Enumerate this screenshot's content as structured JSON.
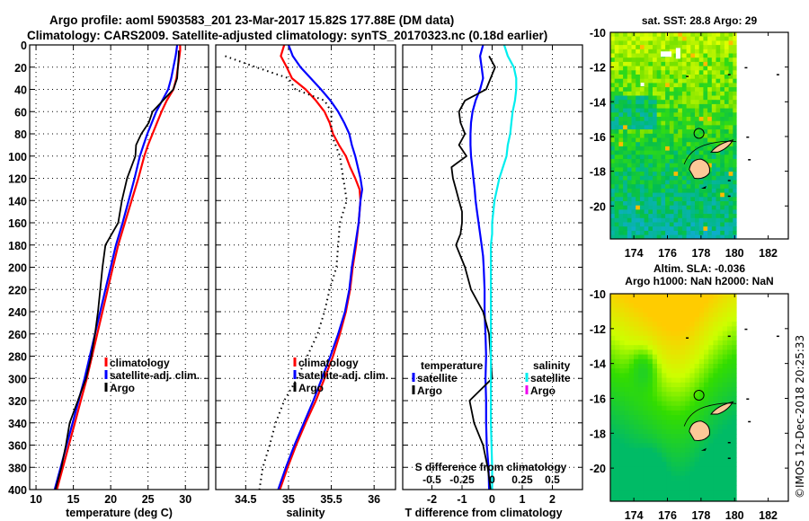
{
  "title": {
    "line1": "Argo profile: aoml 5903583_201 23-Mar-2017 15.82S 177.88E (DM data)",
    "line2": "Climatology: CARS2009. Satellite-adjusted climatology: synTS_20170323.nc (0.18d earlier)"
  },
  "credit": "©IMOS 12-Dec-2018 20:25:33",
  "colors": {
    "climatology": "#ff0000",
    "satellite": "#0000ff",
    "argo": "#000000",
    "salinity_satellite": "#00eeee",
    "salinity_argo": "#ee00ee",
    "land": "#fcc898"
  },
  "chart_data": [
    {
      "type": "line",
      "id": "temperature",
      "xlabel": "temperature (deg C)",
      "ylabel": "",
      "xlim": [
        9.15,
        33.1
      ],
      "ylim": [
        400,
        0
      ],
      "xticks": [
        10,
        15,
        20,
        25,
        30
      ],
      "yticks": [
        0,
        20,
        40,
        60,
        80,
        100,
        120,
        140,
        160,
        180,
        200,
        220,
        240,
        260,
        280,
        300,
        320,
        340,
        360,
        380,
        400
      ],
      "grid": true,
      "legend": {
        "position": "center-right",
        "labels": [
          "climatology",
          "satellite-adj. clim.",
          "Argo"
        ]
      },
      "depth": [
        0,
        5,
        10,
        20,
        30,
        40,
        50,
        60,
        70,
        80,
        90,
        100,
        120,
        140,
        160,
        180,
        200,
        220,
        240,
        260,
        280,
        300,
        320,
        340,
        360,
        380,
        400
      ],
      "series": [
        {
          "name": "climatology",
          "color_key": "climatology",
          "values": [
            29.3,
            29.3,
            29.2,
            29.0,
            28.8,
            28.4,
            27.5,
            26.8,
            26.2,
            25.6,
            25.0,
            24.5,
            23.7,
            22.8,
            21.9,
            21.0,
            20.3,
            19.6,
            18.9,
            18.2,
            17.5,
            16.8,
            16.0,
            15.2,
            14.4,
            13.6,
            12.8
          ]
        },
        {
          "name": "satellite-adj. clim.",
          "color_key": "satellite",
          "values": [
            28.9,
            28.8,
            28.7,
            28.4,
            28.1,
            27.7,
            26.9,
            26.1,
            25.5,
            24.9,
            24.4,
            23.9,
            23.2,
            22.4,
            21.6,
            20.7,
            20.0,
            19.3,
            18.6,
            17.9,
            17.2,
            16.5,
            15.7,
            14.9,
            14.1,
            13.3,
            12.5
          ]
        },
        {
          "name": "Argo",
          "color_key": "argo",
          "values": [
            null,
            29.1,
            29.1,
            29.0,
            28.9,
            28.4,
            27.0,
            25.6,
            25.1,
            24.1,
            23.4,
            23.3,
            22.2,
            21.5,
            21.0,
            19.3,
            18.9,
            18.6,
            18.3,
            17.9,
            17.4,
            16.7,
            15.6,
            14.5,
            14.0,
            13.4,
            12.6
          ]
        }
      ]
    },
    {
      "type": "line",
      "id": "salinity",
      "xlabel": "salinity",
      "xlim": [
        34.15,
        36.25
      ],
      "ylim": [
        400,
        0
      ],
      "xticks": [
        34.5,
        35,
        35.5,
        36
      ],
      "grid": true,
      "legend": {
        "position": "center-right",
        "labels": [
          "climatology",
          "satellite-adj. clim.",
          "Argo"
        ]
      },
      "depth": [
        0,
        10,
        20,
        30,
        40,
        50,
        60,
        70,
        80,
        90,
        100,
        110,
        120,
        130,
        140,
        160,
        180,
        200,
        220,
        240,
        260,
        280,
        300,
        320,
        340,
        360,
        380,
        400
      ],
      "series": [
        {
          "name": "climatology",
          "color_key": "climatology",
          "values": [
            34.95,
            34.91,
            34.98,
            35.04,
            35.2,
            35.32,
            35.42,
            35.48,
            35.52,
            35.59,
            35.67,
            35.72,
            35.78,
            35.83,
            35.84,
            35.82,
            35.79,
            35.75,
            35.72,
            35.67,
            35.6,
            35.52,
            35.42,
            35.32,
            35.2,
            35.09,
            34.99,
            34.9
          ]
        },
        {
          "name": "satellite-adj. clim.",
          "color_key": "satellite",
          "values": [
            35.0,
            35.05,
            35.14,
            35.26,
            35.38,
            35.49,
            35.58,
            35.65,
            35.71,
            35.74,
            35.78,
            35.81,
            35.84,
            35.86,
            35.84,
            35.82,
            35.78,
            35.74,
            35.71,
            35.66,
            35.58,
            35.49,
            35.39,
            35.29,
            35.18,
            35.07,
            34.97,
            34.88
          ]
        },
        {
          "name": "Argo",
          "color_key": "argo",
          "dotted": true,
          "values": [
            null,
            34.26,
            34.62,
            35.0,
            35.08,
            35.42,
            35.5,
            35.5,
            35.5,
            35.55,
            35.6,
            35.62,
            35.64,
            35.66,
            35.68,
            35.6,
            35.58,
            35.56,
            35.48,
            35.42,
            35.34,
            35.22,
            35.1,
            34.95,
            34.85,
            34.78,
            34.7,
            34.66
          ]
        }
      ]
    },
    {
      "type": "line",
      "id": "difference",
      "xlabel": "T difference from climatology",
      "x2label": "S difference from climatology",
      "xlim": [
        -2.97,
        3.0
      ],
      "x2lim": [
        -0.742,
        0.75
      ],
      "ylim": [
        400,
        0
      ],
      "xticks": [
        -2,
        -1,
        0,
        1,
        2
      ],
      "x2ticks": [
        -0.5,
        -0.25,
        0,
        0.25,
        0.5
      ],
      "x2ticklabels": [
        "-0.5",
        "-0.25",
        "0",
        "0.25",
        "0.5"
      ],
      "grid": true,
      "legend": {
        "position": "center",
        "temperature_header": "temperature",
        "salinity_header": "salinity",
        "labels": [
          "satellite",
          "Argo",
          "satellite",
          "Argo"
        ]
      },
      "depth": [
        0,
        10,
        20,
        30,
        40,
        50,
        60,
        70,
        80,
        90,
        100,
        110,
        120,
        130,
        140,
        150,
        160,
        170,
        180,
        190,
        200,
        220,
        240,
        260,
        280,
        300,
        320,
        340,
        360,
        380,
        400
      ],
      "series": [
        {
          "name": "temperature satellite",
          "color_key": "satellite",
          "axis": "T",
          "values": [
            -0.3,
            -0.4,
            -0.35,
            -0.3,
            -0.4,
            -0.55,
            -0.65,
            -0.7,
            -0.72,
            -0.72,
            -0.7,
            -0.66,
            -0.62,
            -0.58,
            -0.55,
            -0.5,
            -0.45,
            -0.4,
            -0.35,
            -0.3,
            -0.28,
            -0.25,
            -0.25,
            -0.22,
            -0.2,
            -0.22,
            -0.2,
            -0.2,
            -0.18,
            -0.12,
            -0.1
          ]
        },
        {
          "name": "temperature Argo",
          "color_key": "argo",
          "axis": "T",
          "values": [
            null,
            -0.1,
            0.1,
            -0.05,
            -0.2,
            -0.9,
            -1.1,
            -1.05,
            -0.9,
            -1.1,
            -0.85,
            -1.35,
            -1.3,
            -1.2,
            -1.1,
            -1.0,
            -1.0,
            -1.05,
            -1.2,
            -1.05,
            -0.9,
            -0.7,
            -0.3,
            -0.1,
            -0.05,
            0.0,
            -0.75,
            -0.6,
            -0.3,
            -0.15,
            -0.05
          ]
        },
        {
          "name": "salinity satellite",
          "color_key": "salinity_satellite",
          "axis": "S",
          "values": [
            0.1,
            0.13,
            0.18,
            0.2,
            0.2,
            0.19,
            0.17,
            0.16,
            0.15,
            0.13,
            0.12,
            0.09,
            0.06,
            0.04,
            0.02,
            0.01,
            0.0,
            0.0,
            -0.01,
            -0.01,
            -0.01,
            -0.01,
            -0.01,
            -0.01,
            -0.01,
            -0.01,
            -0.01,
            -0.01,
            -0.005,
            0.0,
            0.0
          ]
        }
      ]
    },
    {
      "type": "heatmap",
      "id": "sst-map",
      "title": "sat. SST: 28.8 Argo: 29",
      "xlim": [
        172.6,
        183.2
      ],
      "ylim": [
        -21.9,
        -10
      ],
      "xticks": [
        174,
        176,
        178,
        180,
        182
      ],
      "yticks": [
        -10,
        -12,
        -14,
        -16,
        -18,
        -20
      ],
      "data_lon_max": 180.1,
      "argo_position": {
        "lon": 177.88,
        "lat": -15.82
      }
    },
    {
      "type": "heatmap",
      "id": "sla-map",
      "title": "Altim. SLA: -0.036",
      "subtitle": "Argo h1000: NaN h2000: NaN",
      "xlim": [
        172.6,
        183.2
      ],
      "ylim": [
        -21.9,
        -10
      ],
      "xticks": [
        174,
        176,
        178,
        180,
        182
      ],
      "yticks": [
        -10,
        -12,
        -14,
        -16,
        -18,
        -20
      ],
      "data_lon_max": 180.1,
      "argo_position": {
        "lon": 177.88,
        "lat": -15.82
      }
    }
  ]
}
